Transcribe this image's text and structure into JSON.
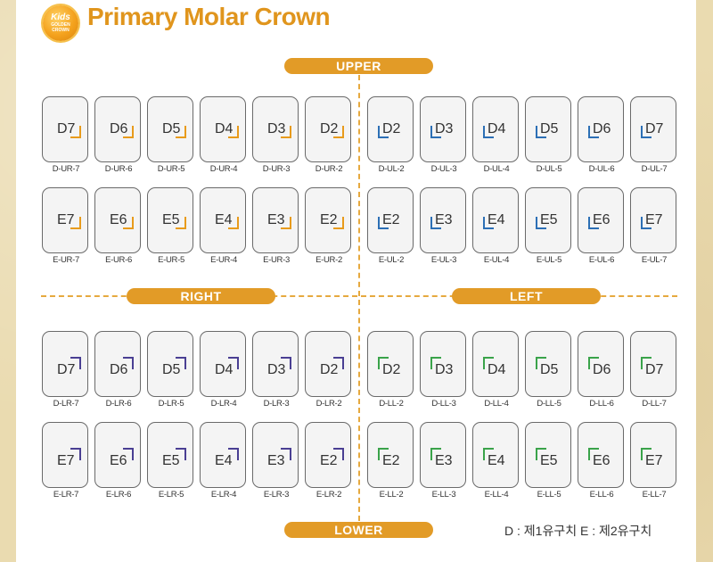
{
  "logo": {
    "line1": "Kids",
    "line2": "GOLDEN",
    "line3": "CROWN"
  },
  "title": "Primary Molar Crown",
  "labels": {
    "upper": "UPPER",
    "lower": "LOWER",
    "right": "RIGHT",
    "left": "LEFT"
  },
  "note": "D : 제1유구치   E : 제2유구치",
  "colors": {
    "accent": "#e29b27",
    "upper_right": "#e89b1c",
    "upper_left": "#2c6fb5",
    "lower_right": "#4a3f93",
    "lower_left": "#3aa34a"
  },
  "quadrants": {
    "ur_d": [
      {
        "label": "D7",
        "code": "D-UR-7"
      },
      {
        "label": "D6",
        "code": "D-UR-6"
      },
      {
        "label": "D5",
        "code": "D-UR-5"
      },
      {
        "label": "D4",
        "code": "D-UR-4"
      },
      {
        "label": "D3",
        "code": "D-UR-3"
      },
      {
        "label": "D2",
        "code": "D-UR-2"
      }
    ],
    "ul_d": [
      {
        "label": "D2",
        "code": "D-UL-2"
      },
      {
        "label": "D3",
        "code": "D-UL-3"
      },
      {
        "label": "D4",
        "code": "D-UL-4"
      },
      {
        "label": "D5",
        "code": "D-UL-5"
      },
      {
        "label": "D6",
        "code": "D-UL-6"
      },
      {
        "label": "D7",
        "code": "D-UL-7"
      }
    ],
    "ur_e": [
      {
        "label": "E7",
        "code": "E-UR-7"
      },
      {
        "label": "E6",
        "code": "E-UR-6"
      },
      {
        "label": "E5",
        "code": "E-UR-5"
      },
      {
        "label": "E4",
        "code": "E-UR-4"
      },
      {
        "label": "E3",
        "code": "E-UR-3"
      },
      {
        "label": "E2",
        "code": "E-UR-2"
      }
    ],
    "ul_e": [
      {
        "label": "E2",
        "code": "E-UL-2"
      },
      {
        "label": "E3",
        "code": "E-UL-3"
      },
      {
        "label": "E4",
        "code": "E-UL-4"
      },
      {
        "label": "E5",
        "code": "E-UL-5"
      },
      {
        "label": "E6",
        "code": "E-UL-6"
      },
      {
        "label": "E7",
        "code": "E-UL-7"
      }
    ],
    "lr_d": [
      {
        "label": "D7",
        "code": "D-LR-7"
      },
      {
        "label": "D6",
        "code": "D-LR-6"
      },
      {
        "label": "D5",
        "code": "D-LR-5"
      },
      {
        "label": "D4",
        "code": "D-LR-4"
      },
      {
        "label": "D3",
        "code": "D-LR-3"
      },
      {
        "label": "D2",
        "code": "D-LR-2"
      }
    ],
    "ll_d": [
      {
        "label": "D2",
        "code": "D-LL-2"
      },
      {
        "label": "D3",
        "code": "D-LL-3"
      },
      {
        "label": "D4",
        "code": "D-LL-4"
      },
      {
        "label": "D5",
        "code": "D-LL-5"
      },
      {
        "label": "D6",
        "code": "D-LL-6"
      },
      {
        "label": "D7",
        "code": "D-LL-7"
      }
    ],
    "lr_e": [
      {
        "label": "E7",
        "code": "E-LR-7"
      },
      {
        "label": "E6",
        "code": "E-LR-6"
      },
      {
        "label": "E5",
        "code": "E-LR-5"
      },
      {
        "label": "E4",
        "code": "E-LR-4"
      },
      {
        "label": "E3",
        "code": "E-LR-3"
      },
      {
        "label": "E2",
        "code": "E-LR-2"
      }
    ],
    "ll_e": [
      {
        "label": "E2",
        "code": "E-LL-2"
      },
      {
        "label": "E3",
        "code": "E-LL-3"
      },
      {
        "label": "E4",
        "code": "E-LL-4"
      },
      {
        "label": "E5",
        "code": "E-LL-5"
      },
      {
        "label": "E6",
        "code": "E-LL-6"
      },
      {
        "label": "E7",
        "code": "E-LL-7"
      }
    ]
  }
}
